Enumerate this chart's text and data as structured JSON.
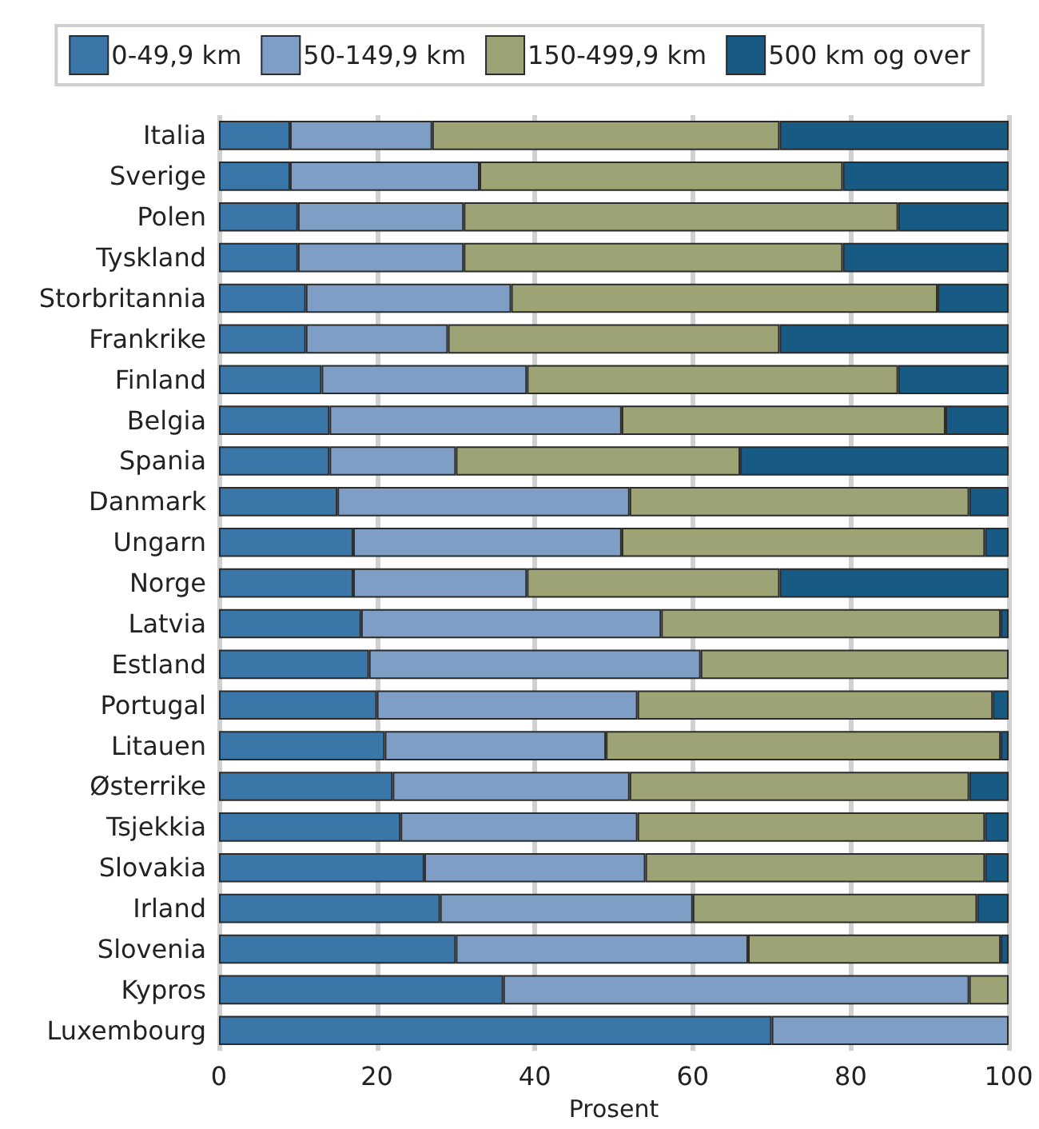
{
  "chart_data": {
    "type": "bar",
    "orientation": "horizontal",
    "stacked": true,
    "xlabel": "Prosent",
    "categories": [
      "Italia",
      "Sverige",
      "Polen",
      "Tyskland",
      "Storbritannia",
      "Frankrike",
      "Finland",
      "Belgia",
      "Spania",
      "Danmark",
      "Ungarn",
      "Norge",
      "Latvia",
      "Estland",
      "Portugal",
      "Litauen",
      "Østerrike",
      "Tsjekkia",
      "Slovakia",
      "Irland",
      "Slovenia",
      "Kypros",
      "Luxembourg"
    ],
    "series": [
      {
        "name": "0-49,9 km",
        "color": "#3a76a8",
        "values": [
          9,
          9,
          10,
          10,
          11,
          11,
          13,
          14,
          14,
          15,
          17,
          17,
          18,
          19,
          20,
          21,
          22,
          23,
          26,
          28,
          30,
          36,
          70
        ]
      },
      {
        "name": "50-149,9 km",
        "color": "#7f9ec6",
        "values": [
          18,
          24,
          21,
          21,
          26,
          18,
          26,
          37,
          16,
          37,
          34,
          22,
          38,
          42,
          33,
          28,
          30,
          30,
          28,
          32,
          37,
          59,
          30
        ]
      },
      {
        "name": "150-499,9 km",
        "color": "#9da374",
        "values": [
          44,
          46,
          55,
          48,
          54,
          42,
          47,
          41,
          36,
          43,
          46,
          32,
          43,
          39,
          45,
          50,
          43,
          44,
          43,
          36,
          32,
          5,
          0
        ]
      },
      {
        "name": "500 km og over",
        "color": "#175a84",
        "values": [
          29,
          21,
          14,
          21,
          9,
          29,
          14,
          8,
          34,
          5,
          3,
          29,
          1,
          0,
          2,
          1,
          5,
          3,
          3,
          4,
          1,
          0,
          0
        ]
      }
    ],
    "xlim": [
      0,
      100
    ],
    "xticks": [
      0,
      20,
      40,
      60,
      80,
      100
    ],
    "grid": "x",
    "legend": "top"
  }
}
